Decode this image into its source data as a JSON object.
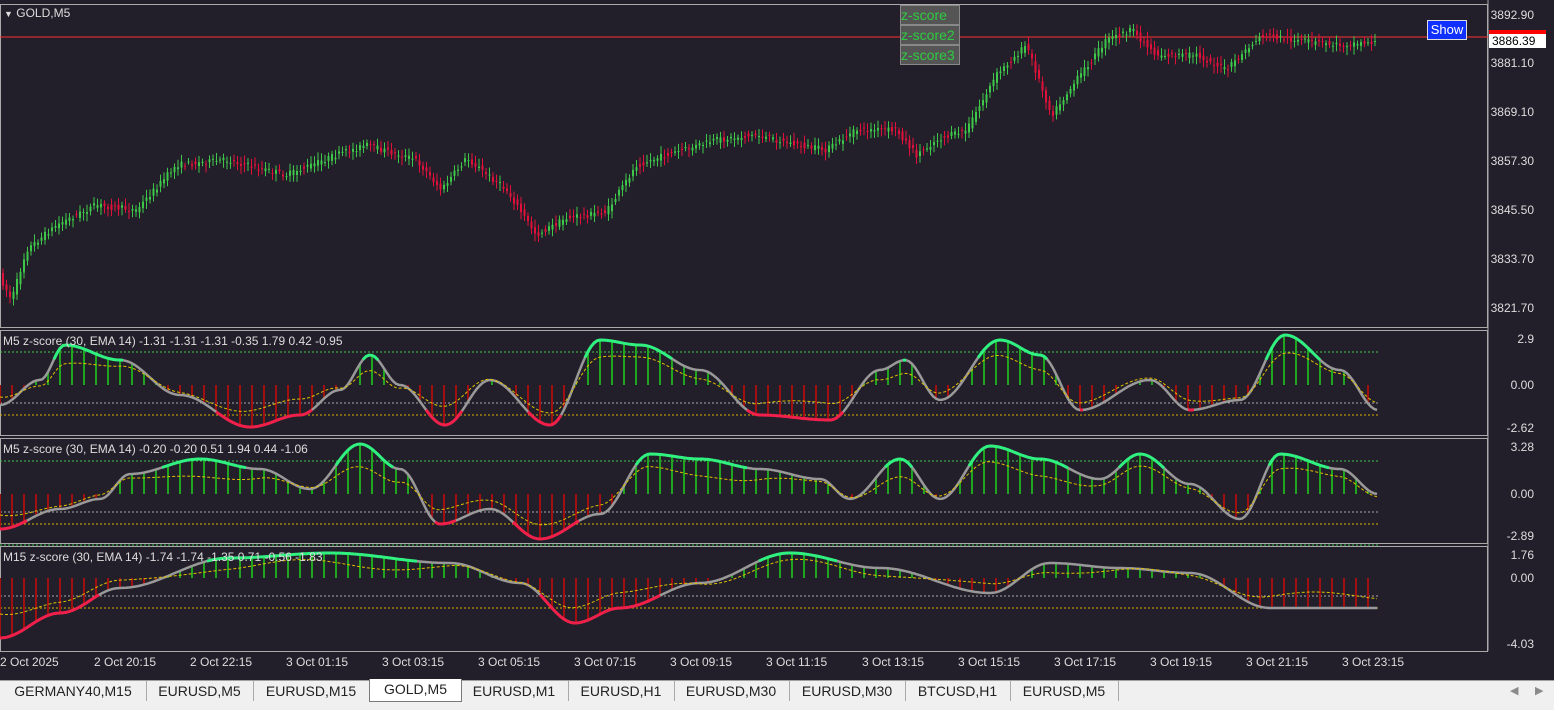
{
  "window": {
    "symbol_title": "GOLD,M5"
  },
  "main_chart": {
    "price_axis": [
      "3892.90",
      "3881.10",
      "3869.10",
      "3857.30",
      "3845.50",
      "3833.70",
      "3821.70"
    ],
    "current_price": "3886.39",
    "buttons": [
      "z-score",
      "z-score2",
      "z-score3"
    ],
    "show_label": "Show",
    "colors": {
      "bull": "#3ec84a",
      "bear": "#e0103a",
      "price_line": "#ff3030",
      "background": "#231f2a"
    }
  },
  "indicators": [
    {
      "label": "M5 z-score (30, EMA 14) -1.31 -1.31 -1.31 -0.35 1.79 0.42 -0.95",
      "axis": [
        "2.9",
        "0.00",
        "-2.62"
      ]
    },
    {
      "label": "M5 z-score (30, EMA 14) -0.20 -0.20 0.51 1.94 0.44 -1.06",
      "axis": [
        "3.28",
        "0.00",
        "-2.89"
      ]
    },
    {
      "label": "M15 z-score (30, EMA 14) -1.74 -1.74 -1.35 0.71 -0.56 -1.83",
      "axis": [
        "1.76",
        "0.00",
        "-4.03"
      ]
    }
  ],
  "time_axis": [
    "2 Oct 2025",
    "2 Oct 20:15",
    "2 Oct 22:15",
    "3 Oct 01:15",
    "3 Oct 03:15",
    "3 Oct 05:15",
    "3 Oct 07:15",
    "3 Oct 09:15",
    "3 Oct 11:15",
    "3 Oct 13:15",
    "3 Oct 15:15",
    "3 Oct 17:15",
    "3 Oct 19:15",
    "3 Oct 21:15",
    "3 Oct 23:15"
  ],
  "tabs": [
    {
      "label": "GERMANY40,M15",
      "active": false
    },
    {
      "label": "EURUSD,M5",
      "active": false
    },
    {
      "label": "EURUSD,M15",
      "active": false
    },
    {
      "label": "GOLD,M5",
      "active": true
    },
    {
      "label": "EURUSD,M1",
      "active": false
    },
    {
      "label": "EURUSD,H1",
      "active": false
    },
    {
      "label": "EURUSD,M30",
      "active": false
    },
    {
      "label": "EURUSD,M30",
      "active": false
    },
    {
      "label": "BTCUSD,H1",
      "active": false
    },
    {
      "label": "EURUSD,M5",
      "active": false
    }
  ],
  "nav": {
    "left": "◀",
    "right": "▶"
  }
}
